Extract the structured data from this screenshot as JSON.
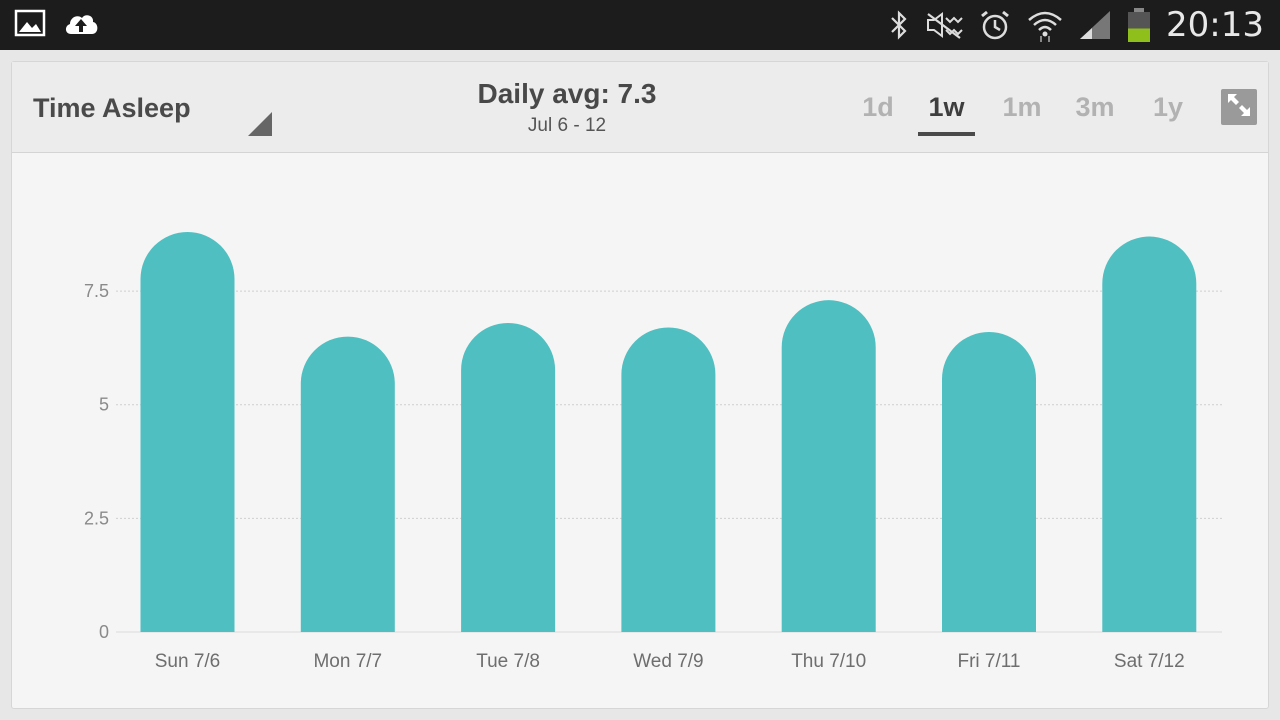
{
  "status_bar": {
    "time": "20:13",
    "left_icons": [
      "gallery-icon",
      "cloud-upload-icon"
    ],
    "right_icons": [
      "bluetooth-icon",
      "mute-icon",
      "alarm-icon",
      "wifi-icon",
      "signal-icon",
      "battery-icon"
    ],
    "battery_level": 0.45
  },
  "header": {
    "metric": "Time Asleep",
    "avg_label": "Daily avg: 7.3",
    "date_range": "Jul 6 - 12",
    "ranges": [
      {
        "label": "1d",
        "active": false
      },
      {
        "label": "1w",
        "active": true
      },
      {
        "label": "1m",
        "active": false
      },
      {
        "label": "3m",
        "active": false
      },
      {
        "label": "1y",
        "active": false
      }
    ]
  },
  "colors": {
    "bar": "#4fbfc1",
    "active_tab": "#3e3e3e",
    "inactive_tab": "#b2b2b2"
  },
  "chart_data": {
    "type": "bar",
    "categories": [
      "Sun 7/6",
      "Mon 7/7",
      "Tue 7/8",
      "Wed 7/9",
      "Thu 7/10",
      "Fri 7/11",
      "Sat 7/12"
    ],
    "values": [
      8.8,
      6.5,
      6.8,
      6.7,
      7.3,
      6.6,
      8.7
    ],
    "yticks": [
      0,
      2.5,
      5,
      7.5
    ],
    "ytick_labels": [
      "0",
      "2.5",
      "5",
      "7.5"
    ],
    "ylim": [
      0,
      8.8
    ],
    "grid": true
  }
}
